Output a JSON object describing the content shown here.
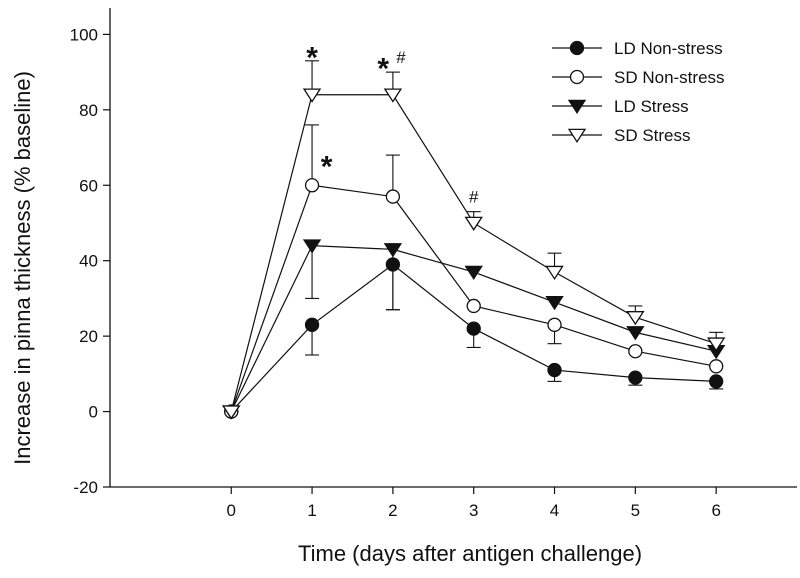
{
  "chart_data": {
    "type": "line",
    "title": "",
    "xlabel": "Time (days after antigen challenge)",
    "ylabel": "Increase in pinna thickness (% baseline)",
    "xlim": [
      -1.5,
      7.0
    ],
    "ylim": [
      -20,
      107
    ],
    "x_ticks": [
      0,
      1,
      2,
      3,
      4,
      5,
      6
    ],
    "y_ticks": [
      -20,
      0,
      20,
      40,
      60,
      80,
      100
    ],
    "grid": false,
    "legend_position": "top-right",
    "series": [
      {
        "name": "LD Non-stress",
        "marker": "circle-filled",
        "x": [
          0,
          1,
          2,
          3,
          4,
          5,
          6
        ],
        "y": [
          0,
          23,
          39,
          22,
          11,
          9,
          8
        ],
        "err_up": [
          0,
          0,
          0,
          0,
          0,
          0,
          0
        ],
        "err_down": [
          0,
          8,
          12,
          5,
          3,
          2,
          2
        ]
      },
      {
        "name": "SD Non-stress",
        "marker": "circle-open",
        "x": [
          0,
          1,
          2,
          3,
          4,
          5,
          6
        ],
        "y": [
          0,
          60,
          57,
          28,
          23,
          16,
          12
        ],
        "err_up": [
          0,
          16,
          11,
          0,
          0,
          0,
          0
        ],
        "err_down": [
          0,
          0,
          0,
          0,
          5,
          0,
          0
        ]
      },
      {
        "name": "LD Stress",
        "marker": "triangle-down-filled",
        "x": [
          0,
          1,
          2,
          3,
          4,
          5,
          6
        ],
        "y": [
          0,
          44,
          43,
          37,
          29,
          21,
          16
        ],
        "err_up": [
          0,
          0,
          0,
          0,
          0,
          0,
          0
        ],
        "err_down": [
          0,
          14,
          16,
          0,
          0,
          0,
          0
        ]
      },
      {
        "name": "SD Stress",
        "marker": "triangle-down-open",
        "x": [
          0,
          1,
          2,
          3,
          4,
          5,
          6
        ],
        "y": [
          0,
          84,
          84,
          50,
          37,
          25,
          18
        ],
        "err_up": [
          0,
          9,
          6,
          3,
          5,
          3,
          3
        ],
        "err_down": [
          0,
          0,
          0,
          0,
          0,
          0,
          0
        ]
      }
    ],
    "annotations": [
      {
        "text": "*",
        "x": 1.0,
        "y": 95,
        "size": "large"
      },
      {
        "text": "*",
        "x": 1.18,
        "y": 66,
        "size": "large"
      },
      {
        "text": "*",
        "x": 1.88,
        "y": 92,
        "size": "large"
      },
      {
        "text": "#",
        "x": 2.1,
        "y": 94,
        "size": "small"
      },
      {
        "text": "#",
        "x": 3.0,
        "y": 57,
        "size": "small"
      }
    ]
  },
  "colors": {
    "ink": "#111111",
    "background": "#ffffff"
  }
}
